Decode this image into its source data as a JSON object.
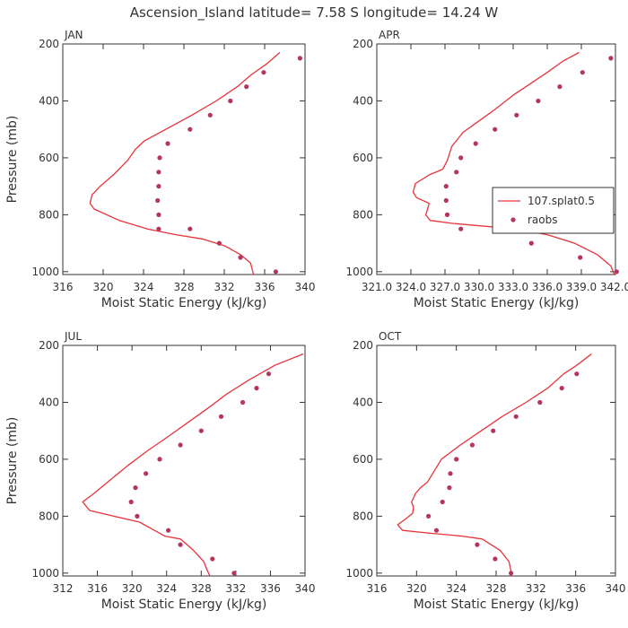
{
  "figure_title": "Ascension_Island  latitude= 7.58 S longitude= 14.24 W",
  "legend": {
    "line_label": "107.splat0.5",
    "points_label": "raobs"
  },
  "colors": {
    "model_line": "#e8333a",
    "obs_marker": "#b5365c"
  },
  "chart_data": [
    {
      "type": "scatter",
      "title": "JAN",
      "xlabel": "Moist Static Energy (kJ/kg)",
      "ylabel": "Pressure (mb)",
      "xlim": [
        316,
        340
      ],
      "ylim": [
        1010,
        200
      ],
      "xticks": [
        "316",
        "320",
        "324",
        "328",
        "332",
        "336",
        "340"
      ],
      "yticks": [
        "200",
        "400",
        "600",
        "800",
        "1000"
      ],
      "series": [
        {
          "name": "107.splat0.5",
          "kind": "line",
          "x": [
            337.5,
            336.2,
            334.6,
            333.3,
            331.2,
            328.8,
            326.2,
            324.1,
            323.2,
            322.4,
            321.0,
            319.7,
            318.9,
            318.7,
            319.1,
            321.6,
            324.4,
            327.2,
            329.8,
            332.1,
            333.6,
            334.6,
            334.9
          ],
          "y": [
            230,
            270,
            310,
            350,
            400,
            450,
            500,
            540,
            570,
            610,
            660,
            700,
            730,
            760,
            780,
            820,
            850,
            870,
            885,
            910,
            940,
            970,
            1010
          ]
        },
        {
          "name": "raobs",
          "kind": "points",
          "x": [
            339.5,
            335.9,
            334.2,
            332.6,
            330.6,
            328.6,
            326.4,
            325.6,
            325.5,
            325.5,
            325.4,
            325.5,
            325.5,
            328.6,
            331.5,
            333.6,
            337.1
          ],
          "y": [
            250,
            300,
            350,
            400,
            450,
            500,
            550,
            600,
            650,
            700,
            750,
            800,
            850,
            850,
            900,
            950,
            1000
          ]
        }
      ]
    },
    {
      "type": "scatter",
      "title": "APR",
      "xlabel": "Moist Static Energy (kJ/kg)",
      "ylabel": "Pressure (mb)",
      "xlim": [
        321.0,
        342.0
      ],
      "ylim": [
        1010,
        200
      ],
      "xticks": [
        "321.0",
        "324.0",
        "327.0",
        "330.0",
        "333.0",
        "336.0",
        "339.0",
        "342.0"
      ],
      "yticks": [
        "200",
        "400",
        "600",
        "800",
        "1000"
      ],
      "series": [
        {
          "name": "107.splat0.5",
          "kind": "line",
          "x": [
            338.8,
            337.4,
            336.0,
            334.5,
            333.0,
            331.4,
            330.0,
            328.6,
            327.6,
            327.2,
            326.8,
            325.6,
            324.4,
            324.2,
            324.5,
            325.6,
            325.4,
            325.3,
            325.7,
            327.6,
            333.2,
            336.0,
            338.4,
            340.4,
            341.6,
            341.9
          ],
          "y": [
            230,
            260,
            300,
            340,
            380,
            430,
            470,
            510,
            560,
            610,
            640,
            660,
            690,
            720,
            740,
            760,
            790,
            800,
            820,
            830,
            850,
            870,
            900,
            940,
            980,
            1010
          ]
        },
        {
          "name": "raobs",
          "kind": "points",
          "x": [
            341.6,
            339.1,
            337.1,
            335.2,
            333.3,
            331.4,
            329.7,
            328.4,
            328.0,
            327.1,
            327.1,
            327.2,
            328.4,
            331.7,
            334.6,
            338.9,
            342.1
          ],
          "y": [
            250,
            300,
            350,
            400,
            450,
            500,
            550,
            600,
            650,
            700,
            750,
            800,
            850,
            850,
            900,
            950,
            1000
          ]
        }
      ]
    },
    {
      "type": "scatter",
      "title": "JUL",
      "xlabel": "Moist Static Energy (kJ/kg)",
      "ylabel": "Pressure (mb)",
      "xlim": [
        312,
        340
      ],
      "ylim": [
        1010,
        200
      ],
      "xticks": [
        "312",
        "316",
        "320",
        "324",
        "328",
        "332",
        "336",
        "340"
      ],
      "yticks": [
        "200",
        "400",
        "600",
        "800",
        "1000"
      ],
      "series": [
        {
          "name": "107.splat0.5",
          "kind": "line",
          "x": [
            339.8,
            336.5,
            333.6,
            331.0,
            328.8,
            326.5,
            324.2,
            321.8,
            319.6,
            317.6,
            315.6,
            314.3,
            315.1,
            317.9,
            320.8,
            322.6,
            323.8,
            325.6,
            327.1,
            328.3,
            328.7,
            329.0
          ],
          "y": [
            230,
            270,
            320,
            370,
            420,
            470,
            520,
            570,
            620,
            670,
            720,
            750,
            780,
            800,
            820,
            850,
            870,
            880,
            920,
            960,
            990,
            1010
          ]
        },
        {
          "name": "raobs",
          "kind": "points",
          "x": [
            335.8,
            334.4,
            332.8,
            330.3,
            328.0,
            325.6,
            323.2,
            321.6,
            320.4,
            319.9,
            320.6,
            324.2,
            325.6,
            329.3,
            331.8
          ],
          "y": [
            300,
            350,
            400,
            450,
            500,
            550,
            600,
            650,
            700,
            750,
            800,
            850,
            900,
            950,
            1000
          ]
        }
      ]
    },
    {
      "type": "scatter",
      "title": "OCT",
      "xlabel": "Moist Static Energy (kJ/kg)",
      "ylabel": "Pressure (mb)",
      "xlim": [
        316,
        340
      ],
      "ylim": [
        1010,
        200
      ],
      "xticks": [
        "316",
        "320",
        "324",
        "328",
        "332",
        "336",
        "340"
      ],
      "yticks": [
        "200",
        "400",
        "600",
        "800",
        "1000"
      ],
      "series": [
        {
          "name": "107.splat0.5",
          "kind": "line",
          "x": [
            337.6,
            336.1,
            334.8,
            333.2,
            331.0,
            328.6,
            326.5,
            324.4,
            322.5,
            321.8,
            321.1,
            320.4,
            319.9,
            319.5,
            319.7,
            319.6,
            318.9,
            318.1,
            318.6,
            321.4,
            324.6,
            326.6,
            328.4,
            329.3,
            329.6
          ],
          "y": [
            230,
            270,
            300,
            350,
            400,
            450,
            500,
            550,
            600,
            640,
            680,
            700,
            720,
            750,
            770,
            790,
            810,
            830,
            850,
            860,
            870,
            880,
            920,
            960,
            1010
          ]
        },
        {
          "name": "raobs",
          "kind": "points",
          "x": [
            336.1,
            334.6,
            332.4,
            330.0,
            327.7,
            325.6,
            324.0,
            323.4,
            323.3,
            322.6,
            321.2,
            322.0,
            326.1,
            327.9,
            329.5
          ],
          "y": [
            300,
            350,
            400,
            450,
            500,
            550,
            600,
            650,
            700,
            750,
            800,
            850,
            900,
            950,
            1000
          ]
        }
      ]
    }
  ]
}
